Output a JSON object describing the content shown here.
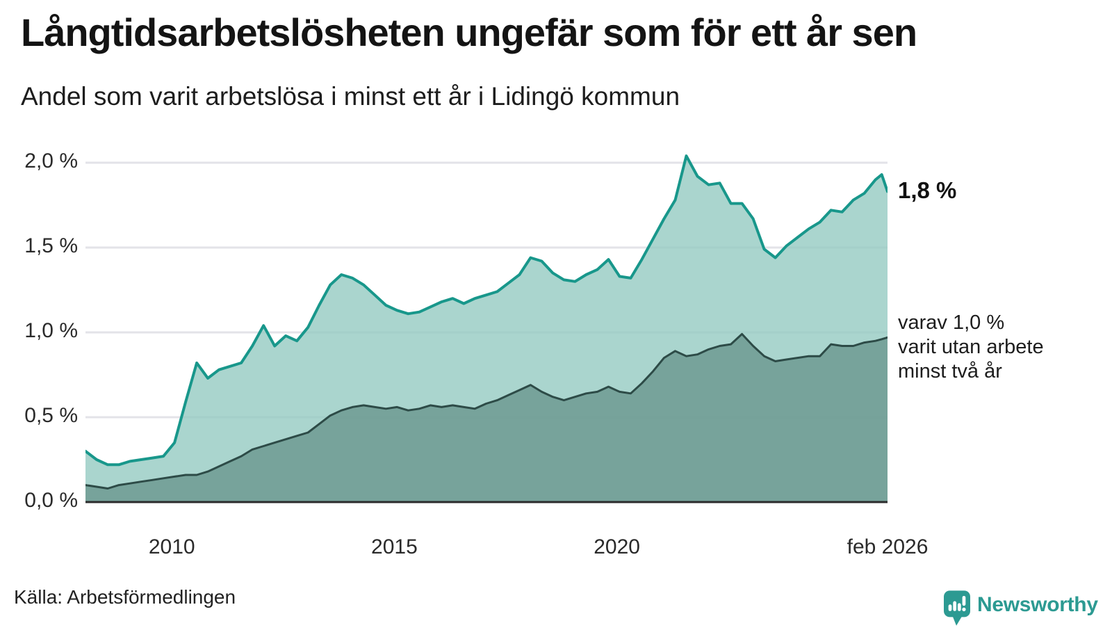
{
  "header": {
    "title": "Långtidsarbetslösheten ungefär som för ett år sen",
    "subtitle": "Andel som varit arbetslösa i minst ett år i Lidingö kommun"
  },
  "chart_data": {
    "type": "area",
    "title": "Långtidsarbetslösheten ungefär som för ett år sen",
    "subtitle": "Andel som varit arbetslösa i minst ett år i Lidingö kommun",
    "xlabel": "",
    "ylabel": "",
    "ylim": [
      0,
      2.05
    ],
    "grid": true,
    "gridline_values": [
      0.5,
      1.0,
      1.5,
      2.0
    ],
    "gridline_color": "#e3e3e8",
    "axis_color": "#2b2b2b",
    "x": [
      2008.06,
      2008.31,
      2008.56,
      2008.81,
      2009.06,
      2009.31,
      2009.56,
      2009.81,
      2010.06,
      2010.31,
      2010.56,
      2010.81,
      2011.06,
      2011.31,
      2011.56,
      2011.81,
      2012.06,
      2012.31,
      2012.56,
      2012.81,
      2013.06,
      2013.31,
      2013.56,
      2013.81,
      2014.06,
      2014.31,
      2014.56,
      2014.81,
      2015.06,
      2015.31,
      2015.56,
      2015.81,
      2016.06,
      2016.31,
      2016.56,
      2016.81,
      2017.06,
      2017.31,
      2017.56,
      2017.81,
      2018.06,
      2018.31,
      2018.56,
      2018.81,
      2019.06,
      2019.31,
      2019.56,
      2019.81,
      2020.06,
      2020.31,
      2020.56,
      2020.81,
      2021.06,
      2021.31,
      2021.56,
      2021.81,
      2022.06,
      2022.31,
      2022.56,
      2022.81,
      2023.06,
      2023.31,
      2023.56,
      2023.81,
      2024.06,
      2024.31,
      2024.56,
      2024.81,
      2025.06,
      2025.31,
      2025.56,
      2025.81,
      2025.95,
      2026.08
    ],
    "series": [
      {
        "name": "Andel som varit arbetslösa i minst ett år",
        "line": "#18978b",
        "fill": "rgba(146,201,192,0.78)",
        "width": 4,
        "values": [
          0.3,
          0.25,
          0.22,
          0.22,
          0.24,
          0.25,
          0.26,
          0.27,
          0.35,
          0.59,
          0.82,
          0.73,
          0.78,
          0.8,
          0.82,
          0.92,
          1.04,
          0.92,
          0.98,
          0.95,
          1.03,
          1.16,
          1.28,
          1.34,
          1.32,
          1.28,
          1.22,
          1.16,
          1.13,
          1.11,
          1.12,
          1.15,
          1.18,
          1.2,
          1.17,
          1.2,
          1.22,
          1.24,
          1.29,
          1.34,
          1.44,
          1.42,
          1.35,
          1.31,
          1.3,
          1.34,
          1.37,
          1.43,
          1.33,
          1.32,
          1.43,
          1.55,
          1.67,
          1.78,
          2.04,
          1.92,
          1.87,
          1.88,
          1.76,
          1.76,
          1.67,
          1.49,
          1.44,
          1.51,
          1.56,
          1.61,
          1.65,
          1.72,
          1.71,
          1.78,
          1.82,
          1.9,
          1.93,
          1.83
        ]
      },
      {
        "name": "varav utan arbete minst två år",
        "line": "#2d4b47",
        "fill": "rgba(107,151,144,0.82)",
        "width": 3,
        "values": [
          0.1,
          0.09,
          0.08,
          0.1,
          0.11,
          0.12,
          0.13,
          0.14,
          0.15,
          0.16,
          0.16,
          0.18,
          0.21,
          0.24,
          0.27,
          0.31,
          0.33,
          0.35,
          0.37,
          0.39,
          0.41,
          0.46,
          0.51,
          0.54,
          0.56,
          0.57,
          0.56,
          0.55,
          0.56,
          0.54,
          0.55,
          0.57,
          0.56,
          0.57,
          0.56,
          0.55,
          0.58,
          0.6,
          0.63,
          0.66,
          0.69,
          0.65,
          0.62,
          0.6,
          0.62,
          0.64,
          0.65,
          0.68,
          0.65,
          0.64,
          0.7,
          0.77,
          0.85,
          0.89,
          0.86,
          0.87,
          0.9,
          0.92,
          0.93,
          0.99,
          0.92,
          0.86,
          0.83,
          0.84,
          0.85,
          0.86,
          0.86,
          0.93,
          0.92,
          0.92,
          0.94,
          0.95,
          0.96,
          0.97
        ]
      }
    ],
    "yticks": [
      {
        "label": "0,0 %",
        "value": 0.0
      },
      {
        "label": "0,5 %",
        "value": 0.5
      },
      {
        "label": "1,0 %",
        "value": 1.0
      },
      {
        "label": "1,5 %",
        "value": 1.5
      },
      {
        "label": "2,0 %",
        "value": 2.0
      }
    ],
    "xticks": [
      {
        "label": "2010",
        "year": 2010
      },
      {
        "label": "2015",
        "year": 2015
      },
      {
        "label": "2020",
        "year": 2020
      },
      {
        "label": "feb 2026",
        "year": 2026.08
      }
    ],
    "annotations": {
      "end_value": "1,8 %",
      "secondary_line1": "varav 1,0 %",
      "secondary_line2": "varit utan arbete",
      "secondary_line3": "minst två år"
    }
  },
  "footer": {
    "source": "Källa: Arbetsförmedlingen",
    "brand": "Newsworthy",
    "brand_color": "#2c9a92"
  }
}
